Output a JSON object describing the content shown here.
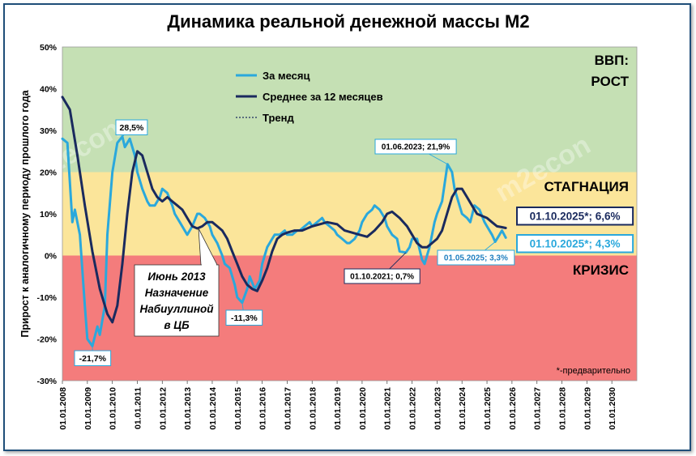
{
  "chart_data": {
    "type": "line",
    "title": "Динамика реальной денежной массы М2",
    "ylabel": "Прирост к аналогичному периоду прошлого года",
    "xlabel": "",
    "ylim": [
      -30,
      50
    ],
    "y_ticks": [
      "50%",
      "40%",
      "30%",
      "20%",
      "10%",
      "0%",
      "-10%",
      "-20%",
      "-30%"
    ],
    "x_ticks": [
      "01.01.2008",
      "01.01.2009",
      "01.01.2010",
      "01.01.2011",
      "01.01.2012",
      "01.01.2013",
      "01.01.2014",
      "01.01.2015",
      "01.01.2016",
      "01.01.2017",
      "01.01.2018",
      "01.01.2019",
      "01.01.2020",
      "01.01.2021",
      "01.01.2022",
      "01.01.2023",
      "01.01.2024",
      "01.01.2025",
      "01.01.2026",
      "01.01.2027",
      "01.01.2028",
      "01.01.2029",
      "01.01.2030"
    ],
    "zones": [
      {
        "label": "ВВП:",
        "label2": "РОСТ",
        "from": 20,
        "to": 50,
        "color": "#c5e0b4"
      },
      {
        "label": "СТАГНАЦИЯ",
        "from": 0,
        "to": 20,
        "color": "#fbe59a"
      },
      {
        "label": "КРИЗИС",
        "from": -30,
        "to": 0,
        "color": "#f47c7c"
      }
    ],
    "legend": [
      "За месяц",
      "Среднее за 12 месяцев",
      "Тренд"
    ],
    "legend_position": "top-left",
    "series": [
      {
        "name": "За месяц",
        "color": "#2aa8dc",
        "x": [
          2008.0,
          2008.2,
          2008.4,
          2008.5,
          2008.7,
          2008.9,
          2009.0,
          2009.2,
          2009.4,
          2009.5,
          2009.7,
          2009.8,
          2010.0,
          2010.2,
          2010.4,
          2010.5,
          2010.7,
          2010.9,
          2011.0,
          2011.2,
          2011.4,
          2011.5,
          2011.7,
          2011.9,
          2012.0,
          2012.2,
          2012.4,
          2012.5,
          2012.7,
          2012.9,
          2013.0,
          2013.2,
          2013.4,
          2013.5,
          2013.7,
          2013.9,
          2014.0,
          2014.2,
          2014.4,
          2014.5,
          2014.7,
          2014.9,
          2015.0,
          2015.2,
          2015.4,
          2015.5,
          2015.7,
          2015.9,
          2016.0,
          2016.2,
          2016.4,
          2016.5,
          2016.7,
          2016.9,
          2017.0,
          2017.2,
          2017.4,
          2017.5,
          2017.7,
          2017.9,
          2018.0,
          2018.2,
          2018.4,
          2018.5,
          2018.7,
          2018.9,
          2019.0,
          2019.2,
          2019.4,
          2019.5,
          2019.7,
          2019.9,
          2020.0,
          2020.2,
          2020.4,
          2020.5,
          2020.7,
          2020.9,
          2021.0,
          2021.2,
          2021.4,
          2021.5,
          2021.75,
          2021.9,
          2022.0,
          2022.2,
          2022.4,
          2022.5,
          2022.7,
          2022.9,
          2023.0,
          2023.2,
          2023.42,
          2023.6,
          2023.7,
          2023.9,
          2024.0,
          2024.2,
          2024.33,
          2024.5,
          2024.7,
          2024.9,
          2025.0,
          2025.2,
          2025.33,
          2025.5,
          2025.6,
          2025.75
        ],
        "values": [
          28,
          27,
          8,
          11,
          5,
          -12,
          -20,
          -21.7,
          -17,
          -19,
          -12,
          5,
          20,
          27,
          28.5,
          26,
          28,
          24,
          20,
          16,
          13,
          12,
          12,
          14,
          16,
          15,
          12,
          10,
          8,
          6,
          5,
          7,
          10,
          10,
          9,
          7,
          5,
          3,
          0,
          -2,
          -3,
          -7,
          -10,
          -11.3,
          -8,
          -5,
          -8,
          -6,
          -2,
          2,
          4,
          5,
          5,
          6,
          5,
          5,
          6,
          6,
          7,
          8,
          7,
          8,
          9,
          8,
          7,
          6,
          5,
          4,
          3,
          3,
          4,
          6,
          8,
          10,
          11,
          12,
          11,
          9,
          7,
          5,
          4,
          1,
          0.7,
          2,
          4,
          4,
          -1,
          -2,
          2,
          8,
          10,
          13,
          21.9,
          20,
          16,
          12,
          10,
          9,
          8,
          12,
          11,
          8,
          7,
          5,
          3.3,
          5,
          6,
          4.3
        ]
      },
      {
        "name": "Среднее за 12 месяцев",
        "color": "#1a2a5e",
        "x": [
          2008.0,
          2008.3,
          2008.6,
          2008.9,
          2009.2,
          2009.5,
          2009.8,
          2010.0,
          2010.2,
          2010.4,
          2010.6,
          2010.8,
          2011.0,
          2011.2,
          2011.4,
          2011.6,
          2011.8,
          2012.0,
          2012.2,
          2012.4,
          2012.6,
          2012.8,
          2013.0,
          2013.2,
          2013.4,
          2013.6,
          2013.8,
          2014.0,
          2014.2,
          2014.4,
          2014.6,
          2014.8,
          2015.0,
          2015.2,
          2015.4,
          2015.6,
          2015.8,
          2016.0,
          2016.2,
          2016.4,
          2016.6,
          2016.8,
          2017.0,
          2017.3,
          2017.6,
          2018.0,
          2018.3,
          2018.6,
          2019.0,
          2019.3,
          2019.6,
          2019.9,
          2020.2,
          2020.5,
          2020.8,
          2021.0,
          2021.2,
          2021.5,
          2021.8,
          2022.0,
          2022.2,
          2022.4,
          2022.6,
          2022.8,
          2023.0,
          2023.2,
          2023.4,
          2023.6,
          2023.8,
          2024.0,
          2024.2,
          2024.4,
          2024.6,
          2024.8,
          2025.0,
          2025.2,
          2025.4,
          2025.6,
          2025.75
        ],
        "values": [
          38,
          35,
          24,
          12,
          1,
          -8,
          -14,
          -16,
          -12,
          -2,
          10,
          20,
          25,
          24,
          20,
          16,
          14,
          13,
          14,
          13,
          12,
          11,
          9,
          7,
          6.5,
          7,
          8,
          8,
          7,
          6,
          4,
          1,
          -2,
          -5,
          -7,
          -8,
          -8.5,
          -6,
          -3,
          1,
          4,
          5,
          5.5,
          6,
          6,
          7,
          7.5,
          8,
          7.5,
          6,
          5.5,
          5,
          4.5,
          6,
          8,
          10,
          10.5,
          9,
          7,
          5,
          3,
          2,
          2,
          3,
          4,
          6,
          10,
          14,
          16,
          16,
          14,
          12,
          10,
          9.5,
          9,
          8,
          7,
          6.8,
          6.6
        ]
      }
    ],
    "annotations": [
      {
        "text": "28,5%",
        "x": 2010.4,
        "y": 28.5
      },
      {
        "text": "-21,7%",
        "x": 2009.2,
        "y": -21.7
      },
      {
        "text": "-11,3%",
        "x": 2015.2,
        "y": -11.3
      },
      {
        "text": "01.06.2023; 21,9%",
        "x": 2023.42,
        "y": 21.9
      },
      {
        "text": "01.10.2021; 0,7%",
        "x": 2021.75,
        "y": 0.7
      },
      {
        "text": "01.05.2025; 3,3%",
        "x": 2025.33,
        "y": 3.3
      },
      {
        "text": "01.10.2025*; 6,6%",
        "x": 2025.75,
        "y": 6.6
      },
      {
        "text": "01.10.2025*; 4,3%",
        "x": 2025.75,
        "y": 4.3
      }
    ],
    "callout": [
      "Июнь 2013",
      "Назначение",
      "Набиуллиной",
      "в ЦБ"
    ],
    "callout_target": {
      "x": 2013.45,
      "y": 6.5
    },
    "footnote": "*-предварительно",
    "watermark": "m2econ"
  }
}
